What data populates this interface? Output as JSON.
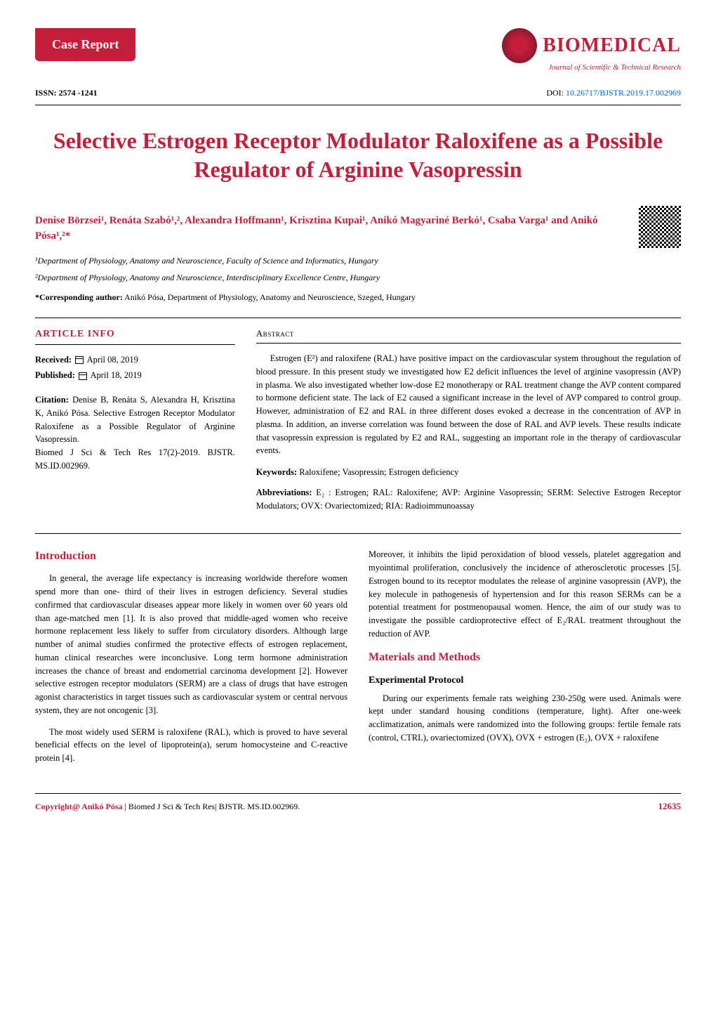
{
  "brand": {
    "case_report": "Case Report",
    "logo_text": "BIOMEDICAL",
    "logo_subtitle": "Journal of Scientific & Technical Research",
    "accent_color": "#c41e3a"
  },
  "meta": {
    "issn_label": "ISSN: 2574 -1241",
    "doi_label": "DOI:",
    "doi_value": "10.26717/BJSTR.2019.17.002969"
  },
  "title": "Selective Estrogen Receptor Modulator Raloxifene as a Possible Regulator of Arginine Vasopressin",
  "authors_html": "Denise Börzsei¹, Renáta Szabó¹,², Alexandra Hoffmann¹, Krisztina Kupai¹, Anikó Magyariné Berkó¹, Csaba Varga¹ and Anikó Pósa¹,²*",
  "affiliations": {
    "a1": "¹Department of Physiology, Anatomy and Neuroscience, Faculty of Science and Informatics, Hungary",
    "a2": "²Department of Physiology, Anatomy and Neuroscience, Interdisciplinary Excellence Centre, Hungary"
  },
  "corresponding": {
    "label": "*Corresponding author:",
    "text": "Anikó Pósa, Department of Physiology, Anatomy and Neuroscience, Szeged, Hungary"
  },
  "article_info": {
    "heading": "ARTICLE INFO",
    "received_label": "Received:",
    "received_date": "April 08, 2019",
    "published_label": "Published:",
    "published_date": "April 18, 2019",
    "citation_label": "Citation:",
    "citation_text": "Denise B, Renáta S, Alexandra H, Krisztina K, Anikó Pósa. Selective Estrogen Receptor Modulator Raloxifene as a Possible Regulator of Arginine Vasopressin.",
    "citation_journal": "Biomed J Sci & Tech Res 17(2)-2019. BJSTR. MS.ID.002969."
  },
  "abstract": {
    "heading": "Abstract",
    "text": "Estrogen (E²) and raloxifene (RAL) have positive impact on the cardiovascular system throughout the regulation of blood pressure. In this present study we investigated how E2 deficit influences the level of arginine vasopressin (AVP) in plasma. We also investigated whether low-dose E2 monotherapy or RAL treatment change the AVP content compared to hormone deficient state. The lack of E2 caused a significant increase in the level of AVP compared to control group. However, administration of E2 and RAL in three different doses evoked a decrease in the concentration of AVP in plasma. In addition, an inverse correlation was found between the dose of RAL and AVP levels. These results indicate that vasopressin expression is regulated by E2 and RAL, suggesting an important role in the therapy of cardiovascular events.",
    "keywords_label": "Keywords:",
    "keywords_text": "Raloxifene; Vasopressin; Estrogen deficiency",
    "abbrev_label": "Abbreviations:",
    "abbrev_text": "E₂ : Estrogen; RAL: Raloxifene; AVP: Arginine Vasopressin; SERM: Selective Estrogen Receptor Modulators; OVX: Ovariectomized; RIA: Radioimmunoassay"
  },
  "body": {
    "introduction_heading": "Introduction",
    "intro_p1": "In general, the average life expectancy is increasing worldwide therefore women spend more than one- third of their lives in estrogen deficiency. Several studies confirmed that cardiovascular diseases appear more likely in women over 60 years old than age-matched men [1]. It is also proved that middle-aged women who receive hormone replacement less likely to suffer from circulatory disorders. Although large number of animal studies confirmed the protective effects of estrogen replacement, human clinical researches were inconclusive. Long term hormone administration increases the chance of breast and endometrial carcinoma development [2]. However selective estrogen receptor modulators (SERM) are a class of drugs that have estrogen agonist characteristics in target tissues such as cardiovascular system or central nervous system, they are not oncogenic [3].",
    "intro_p2": "The most widely used SERM is raloxifene (RAL), which is proved to have several beneficial effects on the level of lipoprotein(a), serum homocysteine and C-reactive protein [4].",
    "intro_p3": "Moreover, it inhibits the lipid peroxidation of blood vessels, platelet aggregation and myointimal proliferation, conclusively the incidence of atherosclerotic processes [5]. Estrogen bound to its receptor modulates the release of arginine vasopressin (AVP), the key molecule in pathogenesis of hypertension and for this reason SERMs can be a potential treatment for postmenopausal women. Hence, the aim of our study was to investigate the possible cardioprotective effect of E₂/RAL treatment throughout the reduction of AVP.",
    "methods_heading": "Materials and Methods",
    "protocol_heading": "Experimental Protocol",
    "protocol_p1": "During our experiments female rats weighing 230-250g were used. Animals were kept under standard housing conditions (temperature, light). After one-week acclimatization, animals were randomized into the following groups: fertile female rats (control, CTRL), ovariectomized (OVX), OVX + estrogen (E₂), OVX + raloxifene"
  },
  "footer": {
    "copyright_prefix": "Copyright@ Anikó Pósa",
    "copyright_rest": " | Biomed J Sci & Tech Res| BJSTR. MS.ID.002969.",
    "page_number": "12635"
  }
}
